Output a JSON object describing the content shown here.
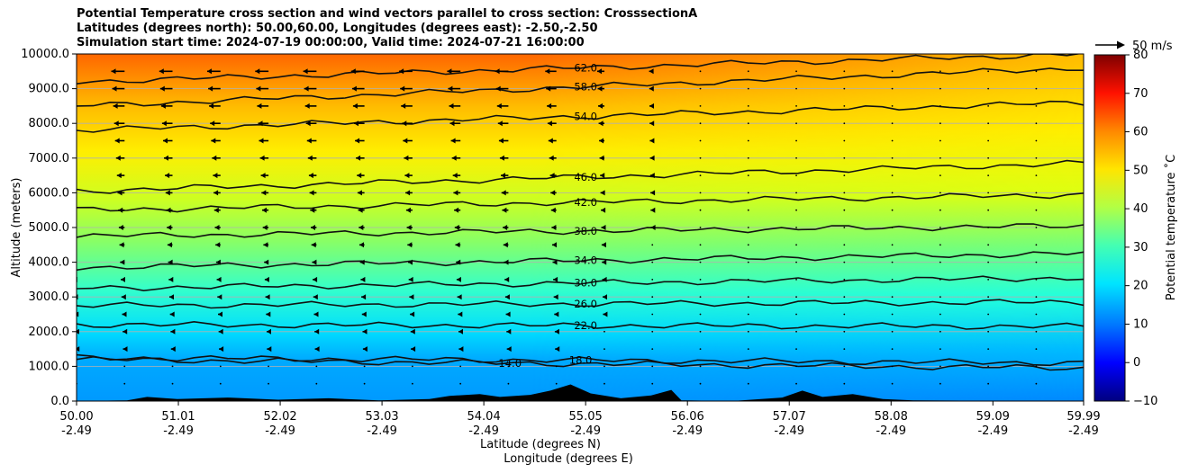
{
  "title_lines": [
    "Potential Temperature cross section and wind vectors parallel to cross section: CrosssectionA",
    "Latitudes (degrees north): 50.00,60.00, Longitudes (degrees east): -2.50,-2.50",
    "Simulation start time: 2024-07-19 00:00:00, Valid time: 2024-07-21 16:00:00"
  ],
  "chart_data": {
    "type": "heatmap",
    "overlays": [
      "contour",
      "quiver",
      "terrain"
    ],
    "xlabel": "Latitude (degrees N)",
    "xlabel2": "Longitude (degrees E)",
    "ylabel": "Altitude (meters)",
    "xlim": [
      50.0,
      59.99
    ],
    "ylim": [
      0,
      10000
    ],
    "grid": "horizontal",
    "x_ticks": [
      {
        "lat": "50.00",
        "lon": "-2.49",
        "value": 50.0
      },
      {
        "lat": "51.01",
        "lon": "-2.49",
        "value": 51.01
      },
      {
        "lat": "52.02",
        "lon": "-2.49",
        "value": 52.02
      },
      {
        "lat": "53.03",
        "lon": "-2.49",
        "value": 53.03
      },
      {
        "lat": "54.04",
        "lon": "-2.49",
        "value": 54.04
      },
      {
        "lat": "55.05",
        "lon": "-2.49",
        "value": 55.05
      },
      {
        "lat": "56.06",
        "lon": "-2.49",
        "value": 56.06
      },
      {
        "lat": "57.07",
        "lon": "-2.49",
        "value": 57.07
      },
      {
        "lat": "58.08",
        "lon": "-2.49",
        "value": 58.08
      },
      {
        "lat": "59.09",
        "lon": "-2.49",
        "value": 59.09
      },
      {
        "lat": "59.99",
        "lon": "-2.49",
        "value": 59.99
      }
    ],
    "y_ticks": [
      {
        "label": "0.0",
        "value": 0
      },
      {
        "label": "1000.0",
        "value": 1000
      },
      {
        "label": "2000.0",
        "value": 2000
      },
      {
        "label": "3000.0",
        "value": 3000
      },
      {
        "label": "4000.0",
        "value": 4000
      },
      {
        "label": "5000.0",
        "value": 5000
      },
      {
        "label": "6000.0",
        "value": 6000
      },
      {
        "label": "7000.0",
        "value": 7000
      },
      {
        "label": "8000.0",
        "value": 8000
      },
      {
        "label": "9000.0",
        "value": 9000
      },
      {
        "label": "10000.0",
        "value": 10000
      }
    ],
    "colorbar": {
      "label": "Potential temperature $^\\circ$C",
      "label_text": "Potential temperature ˚C",
      "range": [
        -10,
        80
      ],
      "ticks": [
        -10,
        0,
        10,
        20,
        30,
        40,
        50,
        60,
        70,
        80
      ],
      "tick_labels": [
        "−10",
        "0",
        "10",
        "20",
        "30",
        "40",
        "50",
        "60",
        "70",
        "80"
      ],
      "colormap": "jet"
    },
    "contours": [
      {
        "label": "14.0",
        "left": 1200,
        "right": 950,
        "label_at": 54.3
      },
      {
        "label": "18.0",
        "left": 1250,
        "right": 1100,
        "label_at": 55.0
      },
      {
        "label": "22.0",
        "left": 2200,
        "right": 2150,
        "label_at": 55.05
      },
      {
        "label": "26.0",
        "left": 2750,
        "right": 2850,
        "label_at": 55.05
      },
      {
        "label": "30.0",
        "left": 3250,
        "right": 3550,
        "label_at": 55.05
      },
      {
        "label": "34.0",
        "left": 3850,
        "right": 4250,
        "label_at": 55.05
      },
      {
        "label": "38.0",
        "left": 4750,
        "right": 5050,
        "label_at": 55.05
      },
      {
        "label": "42.0",
        "left": 5500,
        "right": 5950,
        "label_at": 55.05
      },
      {
        "label": "46.0",
        "left": 6050,
        "right": 6850,
        "label_at": 55.05
      },
      {
        "label": "54.0",
        "left": 7800,
        "right": 8600,
        "label_at": 55.05
      },
      {
        "label": "58.0",
        "left": 8500,
        "right": 9600,
        "label_at": 55.05
      },
      {
        "label": "62.0",
        "left": 9200,
        "right": 10000,
        "label_at": 55.05
      }
    ],
    "wind_reference": {
      "label": "50 m/s",
      "speed": 50
    },
    "wind_speed_profile": [
      {
        "alt": 9500,
        "left": -14,
        "right": -1
      },
      {
        "alt": 8000,
        "left": -11,
        "right": -1
      },
      {
        "alt": 6500,
        "left": -8,
        "right": -1
      },
      {
        "alt": 5000,
        "left": -6,
        "right": -0.5
      },
      {
        "alt": 3500,
        "left": -4,
        "right": -0.5
      },
      {
        "alt": 2000,
        "left": -2,
        "right": -0.3
      },
      {
        "alt": 500,
        "left": -1,
        "right": -0.3
      }
    ]
  }
}
